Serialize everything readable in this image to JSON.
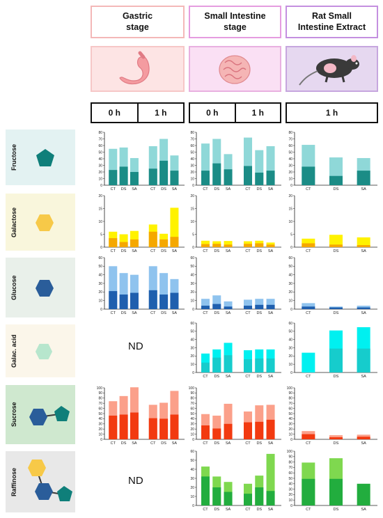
{
  "headers": {
    "stages": [
      "Gastric\nstage",
      "Small Intestine\nstage",
      "Rat Small\nIntestine Extract"
    ],
    "times": {
      "gastric": [
        "0 h",
        "1 h"
      ],
      "small_intestine": [
        "0 h",
        "1 h"
      ],
      "extract": [
        "1 h"
      ]
    }
  },
  "nd_label": "ND",
  "colors": {
    "gastric_border": "#f4b8b8",
    "si_border": "#e59ce0",
    "extract_border": "#c48fe0",
    "fructose_bg": "#e3f2f2",
    "galactose_bg": "#f9f6dc",
    "glucose_bg": "#e9f0ea",
    "galac_acid_bg": "#fbf6ea",
    "sucrose_bg": "#cfe8cf",
    "raffinose_bg": "#e8e8e8"
  },
  "rows": [
    {
      "label": "Fructose",
      "bg": "#e3f2f2",
      "icon": "pentagon-icon"
    },
    {
      "label": "Galactose",
      "bg": "#f9f6dc",
      "icon": "hexagon-icon"
    },
    {
      "label": "Glucose",
      "bg": "#e9f0ea",
      "icon": "hexagon-icon"
    },
    {
      "label": "Galac. acid",
      "bg": "#fbf6ea",
      "icon": "hexagon-icon"
    },
    {
      "label": "Sucrose",
      "bg": "#cfe8cf",
      "icon": "disaccharide-icon"
    },
    {
      "label": "Raffinose",
      "bg": "#e8e8e8",
      "icon": "trisaccharide-icon"
    }
  ],
  "chart_data": [
    {
      "type": "bar",
      "row": "Fructose",
      "panel": "Gastric stage",
      "ylim": [
        0,
        80
      ],
      "yticks": [
        0,
        10,
        20,
        30,
        40,
        50,
        60,
        70,
        80
      ],
      "categories": [
        "CT",
        "DS",
        "SA",
        "CT",
        "DS",
        "SA"
      ],
      "colors": [
        "#1b8c86",
        "#8fd8d8"
      ],
      "series": [
        {
          "values": [
            23,
            28,
            20,
            25,
            37,
            22
          ]
        },
        {
          "values": [
            55,
            57,
            41,
            59,
            70,
            45
          ]
        }
      ]
    },
    {
      "type": "bar",
      "row": "Fructose",
      "panel": "Small Intestine stage",
      "ylim": [
        0,
        80
      ],
      "yticks": [
        0,
        10,
        20,
        30,
        40,
        50,
        60,
        70,
        80
      ],
      "categories": [
        "CT",
        "DS",
        "SA",
        "CT",
        "DS",
        "SA"
      ],
      "colors": [
        "#1b8c86",
        "#8fd8d8"
      ],
      "series": [
        {
          "values": [
            22,
            33,
            24,
            29,
            19,
            22
          ]
        },
        {
          "values": [
            63,
            70,
            47,
            72,
            53,
            59
          ]
        }
      ]
    },
    {
      "type": "bar",
      "row": "Fructose",
      "panel": "Rat Small Intestine Extract",
      "ylim": [
        0,
        80
      ],
      "yticks": [
        0,
        10,
        20,
        30,
        40,
        50,
        60,
        70,
        80
      ],
      "categories": [
        "CT",
        "DS",
        "SA"
      ],
      "colors": [
        "#1b8c86",
        "#8fd8d8"
      ],
      "series": [
        {
          "values": [
            28,
            14,
            22
          ]
        },
        {
          "values": [
            61,
            42,
            41
          ]
        }
      ]
    },
    {
      "type": "bar",
      "row": "Galactose",
      "panel": "Gastric stage",
      "ylim": [
        0,
        20
      ],
      "yticks": [
        0,
        5,
        10,
        15,
        20
      ],
      "categories": [
        "CT",
        "DS",
        "SA",
        "CT",
        "DS",
        "SA"
      ],
      "colors": [
        "#f5a800",
        "#fff200"
      ],
      "series": [
        {
          "values": [
            3.5,
            2,
            3,
            6,
            3,
            4
          ]
        },
        {
          "values": [
            6,
            5,
            6.3,
            8.8,
            5.2,
            15.3
          ]
        }
      ]
    },
    {
      "type": "bar",
      "row": "Galactose",
      "panel": "Small Intestine stage",
      "ylim": [
        0,
        20
      ],
      "yticks": [
        0,
        5,
        10,
        15,
        20
      ],
      "categories": [
        "CT",
        "DS",
        "SA",
        "CT",
        "DS",
        "SA"
      ],
      "colors": [
        "#f5a800",
        "#fff200"
      ],
      "series": [
        {
          "values": [
            1.2,
            1.3,
            1,
            1.3,
            1.5,
            1
          ]
        },
        {
          "values": [
            2.5,
            2.3,
            2.4,
            2.3,
            2.5,
            1.8
          ]
        }
      ]
    },
    {
      "type": "bar",
      "row": "Galactose",
      "panel": "Rat Small Intestine Extract",
      "ylim": [
        0,
        20
      ],
      "yticks": [
        0,
        5,
        10,
        15,
        20
      ],
      "categories": [
        "CT",
        "DS",
        "SA"
      ],
      "colors": [
        "#f5a800",
        "#fff200"
      ],
      "series": [
        {
          "values": [
            1.5,
            1,
            0.8
          ]
        },
        {
          "values": [
            3.3,
            4.8,
            3.8
          ]
        }
      ]
    },
    {
      "type": "bar",
      "row": "Glucose",
      "panel": "Gastric stage",
      "ylim": [
        0,
        60
      ],
      "yticks": [
        0,
        10,
        20,
        30,
        40,
        50,
        60
      ],
      "categories": [
        "CT",
        "DS",
        "SA",
        "CT",
        "DS",
        "SA"
      ],
      "colors": [
        "#1f5fae",
        "#8fc3ee"
      ],
      "series": [
        {
          "values": [
            21,
            17,
            19,
            22,
            17,
            19
          ]
        },
        {
          "values": [
            50,
            42,
            40,
            50,
            42,
            35
          ]
        }
      ]
    },
    {
      "type": "bar",
      "row": "Glucose",
      "panel": "Small Intestine stage",
      "ylim": [
        0,
        60
      ],
      "yticks": [
        0,
        10,
        20,
        30,
        40,
        50,
        60
      ],
      "categories": [
        "CT",
        "DS",
        "SA",
        "CT",
        "DS",
        "SA"
      ],
      "colors": [
        "#1f5fae",
        "#8fc3ee"
      ],
      "series": [
        {
          "values": [
            4,
            6,
            3,
            4,
            5,
            5
          ]
        },
        {
          "values": [
            12,
            16,
            9,
            11,
            12,
            12
          ]
        }
      ]
    },
    {
      "type": "bar",
      "row": "Glucose",
      "panel": "Rat Small Intestine Extract",
      "ylim": [
        0,
        60
      ],
      "yticks": [
        0,
        10,
        20,
        30,
        40,
        50,
        60
      ],
      "categories": [
        "CT",
        "DS",
        "SA"
      ],
      "colors": [
        "#1f5fae",
        "#8fc3ee"
      ],
      "series": [
        {
          "values": [
            3,
            2,
            2
          ]
        },
        {
          "values": [
            7,
            3,
            4
          ]
        }
      ]
    },
    {
      "type": "bar",
      "row": "Galac. acid",
      "panel": "Small Intestine stage",
      "ylim": [
        0,
        60
      ],
      "yticks": [
        0,
        10,
        20,
        30,
        40,
        50,
        60
      ],
      "categories": [
        "CT",
        "DS",
        "SA",
        "CT",
        "DS",
        "SA"
      ],
      "colors": [
        "#16cccc",
        "#00f0f0"
      ],
      "series": [
        {
          "values": [
            12,
            18,
            21,
            16,
            17,
            17
          ]
        },
        {
          "values": [
            23,
            28,
            36,
            27,
            28,
            28
          ]
        }
      ]
    },
    {
      "type": "bar",
      "row": "Galac. acid",
      "panel": "Rat Small Intestine Extract",
      "ylim": [
        0,
        60
      ],
      "yticks": [
        0,
        10,
        20,
        30,
        40,
        50,
        60
      ],
      "categories": [
        "CT",
        "DS",
        "SA"
      ],
      "colors": [
        "#16cccc",
        "#00f0f0"
      ],
      "series": [
        {
          "values": [
            0,
            29,
            29
          ]
        },
        {
          "values": [
            24,
            51,
            55
          ]
        }
      ]
    },
    {
      "type": "bar",
      "row": "Sucrose",
      "panel": "Gastric stage",
      "ylim": [
        0,
        100
      ],
      "yticks": [
        0,
        10,
        20,
        30,
        40,
        50,
        60,
        70,
        80,
        90,
        100
      ],
      "categories": [
        "CT",
        "DS",
        "SA",
        "CT",
        "DS",
        "SA"
      ],
      "colors": [
        "#f23a10",
        "#fba08a"
      ],
      "series": [
        {
          "values": [
            46,
            48,
            52,
            41,
            40,
            48
          ]
        },
        {
          "values": [
            74,
            84,
            101,
            67,
            71,
            94
          ]
        }
      ]
    },
    {
      "type": "bar",
      "row": "Sucrose",
      "panel": "Small Intestine stage",
      "ylim": [
        0,
        100
      ],
      "yticks": [
        0,
        10,
        20,
        30,
        40,
        50,
        60,
        70,
        80,
        90,
        100
      ],
      "categories": [
        "CT",
        "DS",
        "SA",
        "CT",
        "DS",
        "SA"
      ],
      "colors": [
        "#f23a10",
        "#fba08a"
      ],
      "series": [
        {
          "values": [
            27,
            21,
            30,
            33,
            34,
            38
          ]
        },
        {
          "values": [
            49,
            46,
            69,
            54,
            66,
            67
          ]
        }
      ]
    },
    {
      "type": "bar",
      "row": "Sucrose",
      "panel": "Rat Small Intestine Extract",
      "ylim": [
        0,
        100
      ],
      "yticks": [
        0,
        10,
        20,
        30,
        40,
        50,
        60,
        70,
        80,
        90,
        100
      ],
      "categories": [
        "CT",
        "DS",
        "SA"
      ],
      "colors": [
        "#f23a10",
        "#fba08a"
      ],
      "series": [
        {
          "values": [
            10,
            4,
            5
          ]
        },
        {
          "values": [
            16,
            8,
            9
          ]
        }
      ]
    },
    {
      "type": "bar",
      "row": "Raffinose",
      "panel": "Small Intestine stage",
      "ylim": [
        0,
        60
      ],
      "yticks": [
        0,
        10,
        20,
        30,
        40,
        50,
        60
      ],
      "categories": [
        "CT",
        "DS",
        "SA",
        "CT",
        "DS",
        "SA"
      ],
      "colors": [
        "#22ad3e",
        "#7fd84f"
      ],
      "series": [
        {
          "values": [
            32,
            20,
            15,
            13,
            20,
            16
          ]
        },
        {
          "values": [
            43,
            32,
            26,
            24,
            33,
            57
          ]
        }
      ]
    },
    {
      "type": "bar",
      "row": "Raffinose",
      "panel": "Rat Small Intestine Extract",
      "ylim": [
        0,
        100
      ],
      "yticks": [
        0,
        10,
        20,
        30,
        40,
        50,
        60,
        70,
        80,
        90,
        100
      ],
      "categories": [
        "CT",
        "DS",
        "SA"
      ],
      "colors": [
        "#22ad3e",
        "#7fd84f"
      ],
      "series": [
        {
          "values": [
            49,
            49,
            40
          ]
        },
        {
          "values": [
            79,
            87,
            0
          ]
        }
      ]
    }
  ]
}
